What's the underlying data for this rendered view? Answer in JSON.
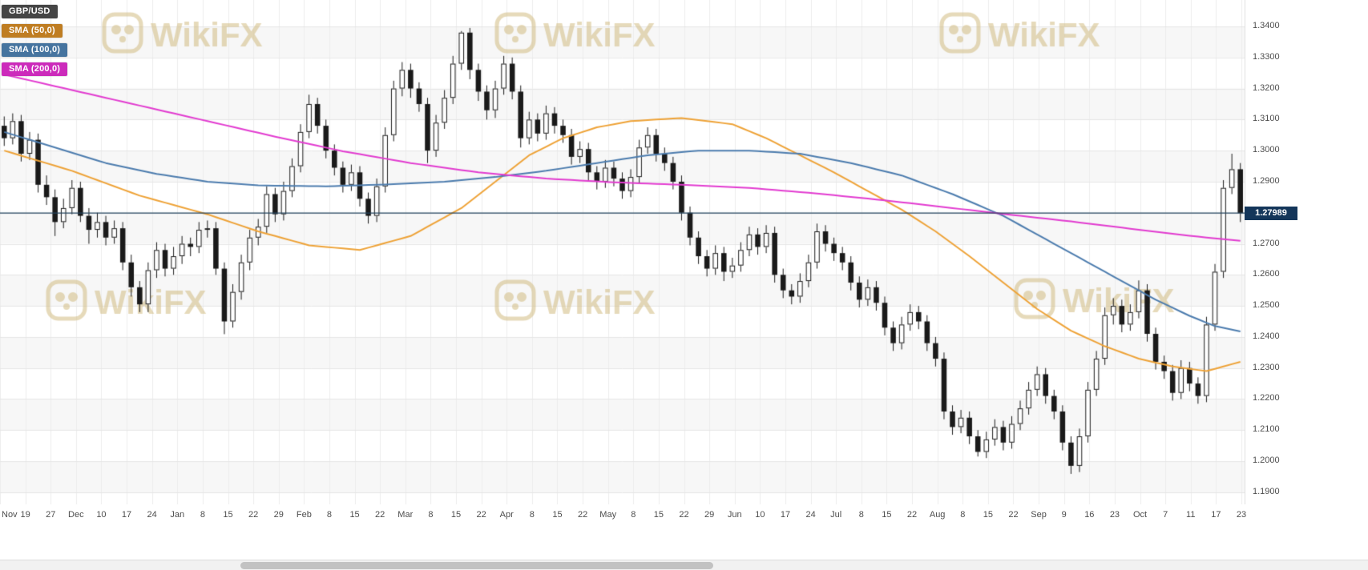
{
  "watermark": {
    "text": "WikiFX"
  },
  "legend": {
    "symbol": "GBP/USD",
    "symbol_bg": "#454545",
    "indicators": [
      {
        "label": "SMA (50,0)",
        "chip_color": "#bf7d22",
        "line_color": "#eea236"
      },
      {
        "label": "SMA (100,0)",
        "chip_color": "#46749f",
        "line_color": "#4c7cae"
      },
      {
        "label": "SMA (200,0)",
        "chip_color": "#cc2bbb",
        "line_color": "#e23bd0"
      }
    ]
  },
  "price_axis": {
    "ticks": [
      "1.3400",
      "1.3300",
      "1.3200",
      "1.3100",
      "1.3000",
      "1.2900",
      "1.2800",
      "1.2700",
      "1.2600",
      "1.2500",
      "1.2400",
      "1.2300",
      "1.2200",
      "1.2100",
      "1.2000",
      "1.1900"
    ],
    "current_price_label": "1.27989",
    "badge_bg": "#14365a"
  },
  "time_axis": {
    "labels": [
      "Nov",
      "19",
      "27",
      "Dec",
      "10",
      "17",
      "24",
      "Jan",
      "8",
      "15",
      "22",
      "29",
      "Feb",
      "8",
      "15",
      "22",
      "Mar",
      "8",
      "15",
      "22",
      "Apr",
      "8",
      "15",
      "22",
      "May",
      "8",
      "15",
      "22",
      "29",
      "Jun",
      "10",
      "17",
      "24",
      "Jul",
      "8",
      "15",
      "22",
      "Aug",
      "8",
      "15",
      "22",
      "Sep",
      "9",
      "16",
      "23",
      "Oct",
      "7",
      "11",
      "17",
      "23"
    ]
  },
  "chart_data": {
    "type": "candlestick",
    "symbol": "GBP/USD",
    "y_range": [
      1.1861,
      1.3485
    ],
    "grid": true,
    "current_price": 1.27989,
    "current_price_color": "#23445f",
    "candle_up_color": "#ffffff",
    "candle_down_color": "#1a1a1a",
    "candle_outline": "#1a1a1a",
    "band_color": "#f7f7f7",
    "hgrid_color": "#e6e6e6",
    "vgrid_color": "#ededed",
    "watermark_color": "rgba(209,188,130,0.55)",
    "candles": [
      [
        1.308,
        1.311,
        1.3015,
        1.304
      ],
      [
        1.304,
        1.312,
        1.302,
        1.3095
      ],
      [
        1.3095,
        1.3115,
        1.2965,
        1.299
      ],
      [
        1.299,
        1.306,
        1.297,
        1.3035
      ],
      [
        1.3035,
        1.3055,
        1.2865,
        1.289
      ],
      [
        1.289,
        1.292,
        1.2825,
        1.285
      ],
      [
        1.285,
        1.2875,
        1.2725,
        1.277
      ],
      [
        1.277,
        1.2845,
        1.275,
        1.2815
      ],
      [
        1.2815,
        1.2905,
        1.2795,
        1.288
      ],
      [
        1.288,
        1.29,
        1.277,
        1.279
      ],
      [
        1.279,
        1.2815,
        1.27,
        1.2745
      ],
      [
        1.2745,
        1.28,
        1.272,
        1.277
      ],
      [
        1.277,
        1.279,
        1.2695,
        1.272
      ],
      [
        1.272,
        1.2775,
        1.27,
        1.275
      ],
      [
        1.275,
        1.277,
        1.2615,
        1.264
      ],
      [
        1.264,
        1.2665,
        1.253,
        1.256
      ],
      [
        1.256,
        1.258,
        1.248,
        1.2505
      ],
      [
        1.2505,
        1.264,
        1.248,
        1.2615
      ],
      [
        1.2615,
        1.2705,
        1.259,
        1.268
      ],
      [
        1.268,
        1.27,
        1.2595,
        1.262
      ],
      [
        1.262,
        1.269,
        1.26,
        1.266
      ],
      [
        1.266,
        1.2725,
        1.2635,
        1.27
      ],
      [
        1.27,
        1.272,
        1.266,
        1.269
      ],
      [
        1.269,
        1.277,
        1.267,
        1.2745
      ],
      [
        1.2745,
        1.2775,
        1.272,
        1.275
      ],
      [
        1.275,
        1.277,
        1.26,
        1.262
      ],
      [
        1.262,
        1.264,
        1.2409,
        1.245
      ],
      [
        1.245,
        1.257,
        1.243,
        1.2545
      ],
      [
        1.2545,
        1.2665,
        1.252,
        1.264
      ],
      [
        1.264,
        1.2745,
        1.2615,
        1.272
      ],
      [
        1.272,
        1.278,
        1.2695,
        1.2755
      ],
      [
        1.2755,
        1.2885,
        1.2735,
        1.286
      ],
      [
        1.286,
        1.288,
        1.277,
        1.2795
      ],
      [
        1.2795,
        1.29,
        1.2775,
        1.287
      ],
      [
        1.287,
        1.2975,
        1.285,
        1.295
      ],
      [
        1.295,
        1.3085,
        1.293,
        1.306
      ],
      [
        1.306,
        1.318,
        1.304,
        1.315
      ],
      [
        1.315,
        1.317,
        1.3055,
        1.308
      ],
      [
        1.308,
        1.31,
        1.2975,
        1.3
      ],
      [
        1.3,
        1.302,
        1.292,
        1.2945
      ],
      [
        1.2945,
        1.2965,
        1.2865,
        1.289
      ],
      [
        1.289,
        1.2955,
        1.287,
        1.293
      ],
      [
        1.293,
        1.295,
        1.282,
        1.2845
      ],
      [
        1.2845,
        1.2865,
        1.2765,
        1.279
      ],
      [
        1.279,
        1.291,
        1.277,
        1.2885
      ],
      [
        1.2885,
        1.3075,
        1.2865,
        1.305
      ],
      [
        1.305,
        1.3225,
        1.303,
        1.32
      ],
      [
        1.32,
        1.3285,
        1.3175,
        1.326
      ],
      [
        1.326,
        1.328,
        1.317,
        1.32
      ],
      [
        1.32,
        1.322,
        1.3125,
        1.315
      ],
      [
        1.315,
        1.317,
        1.296,
        1.3
      ],
      [
        1.3,
        1.3115,
        1.298,
        1.309
      ],
      [
        1.309,
        1.3195,
        1.307,
        1.317
      ],
      [
        1.317,
        1.3305,
        1.315,
        1.328
      ],
      [
        1.328,
        1.3385,
        1.326,
        1.338
      ],
      [
        1.338,
        1.3395,
        1.323,
        1.326
      ],
      [
        1.326,
        1.328,
        1.316,
        1.319
      ],
      [
        1.319,
        1.321,
        1.31,
        1.313
      ],
      [
        1.313,
        1.3225,
        1.3105,
        1.32
      ],
      [
        1.32,
        1.3305,
        1.318,
        1.328
      ],
      [
        1.328,
        1.33,
        1.3165,
        1.319
      ],
      [
        1.319,
        1.321,
        1.301,
        1.304
      ],
      [
        1.304,
        1.3125,
        1.302,
        1.31
      ],
      [
        1.31,
        1.312,
        1.303,
        1.3055
      ],
      [
        1.3055,
        1.3145,
        1.3035,
        1.312
      ],
      [
        1.312,
        1.314,
        1.3055,
        1.308
      ],
      [
        1.308,
        1.31,
        1.3025,
        1.305
      ],
      [
        1.305,
        1.307,
        1.2955,
        1.298
      ],
      [
        1.298,
        1.303,
        1.296,
        1.3005
      ],
      [
        1.3005,
        1.3025,
        1.2905,
        1.293
      ],
      [
        1.293,
        1.295,
        1.2875,
        1.29
      ],
      [
        1.29,
        1.297,
        1.288,
        1.2945
      ],
      [
        1.2945,
        1.2965,
        1.2885,
        1.291
      ],
      [
        1.291,
        1.293,
        1.2845,
        1.287
      ],
      [
        1.287,
        1.294,
        1.285,
        1.2915
      ],
      [
        1.2915,
        1.3035,
        1.2895,
        1.301
      ],
      [
        1.301,
        1.3075,
        1.299,
        1.305
      ],
      [
        1.305,
        1.307,
        1.2965,
        1.299
      ],
      [
        1.299,
        1.301,
        1.2935,
        1.296
      ],
      [
        1.296,
        1.298,
        1.2875,
        1.29
      ],
      [
        1.29,
        1.292,
        1.2775,
        1.28
      ],
      [
        1.28,
        1.282,
        1.2695,
        1.272
      ],
      [
        1.272,
        1.274,
        1.2635,
        1.266
      ],
      [
        1.266,
        1.268,
        1.2595,
        1.262
      ],
      [
        1.262,
        1.2695,
        1.26,
        1.267
      ],
      [
        1.267,
        1.269,
        1.258,
        1.261
      ],
      [
        1.261,
        1.2655,
        1.259,
        1.263
      ],
      [
        1.263,
        1.2705,
        1.261,
        1.268
      ],
      [
        1.268,
        1.2755,
        1.266,
        1.273
      ],
      [
        1.273,
        1.275,
        1.2665,
        1.269
      ],
      [
        1.269,
        1.276,
        1.267,
        1.2735
      ],
      [
        1.2735,
        1.2755,
        1.2575,
        1.26
      ],
      [
        1.26,
        1.262,
        1.2525,
        1.255
      ],
      [
        1.255,
        1.257,
        1.2505,
        1.253
      ],
      [
        1.253,
        1.2605,
        1.251,
        1.258
      ],
      [
        1.258,
        1.2665,
        1.256,
        1.264
      ],
      [
        1.264,
        1.2765,
        1.262,
        1.274
      ],
      [
        1.274,
        1.276,
        1.2675,
        1.27
      ],
      [
        1.27,
        1.272,
        1.2645,
        1.267
      ],
      [
        1.267,
        1.269,
        1.2615,
        1.264
      ],
      [
        1.264,
        1.266,
        1.255,
        1.2575
      ],
      [
        1.2575,
        1.2595,
        1.2495,
        1.252
      ],
      [
        1.252,
        1.2585,
        1.25,
        1.256
      ],
      [
        1.256,
        1.258,
        1.2485,
        1.251
      ],
      [
        1.251,
        1.253,
        1.2405,
        1.243
      ],
      [
        1.243,
        1.245,
        1.2355,
        1.238
      ],
      [
        1.238,
        1.2465,
        1.236,
        1.244
      ],
      [
        1.244,
        1.2505,
        1.242,
        1.248
      ],
      [
        1.248,
        1.25,
        1.2425,
        1.245
      ],
      [
        1.245,
        1.247,
        1.2355,
        1.238
      ],
      [
        1.238,
        1.24,
        1.2305,
        1.233
      ],
      [
        1.233,
        1.235,
        1.2135,
        1.216
      ],
      [
        1.216,
        1.218,
        1.2085,
        1.211
      ],
      [
        1.211,
        1.2165,
        1.209,
        1.214
      ],
      [
        1.214,
        1.216,
        1.2055,
        1.208
      ],
      [
        1.208,
        1.21,
        1.2015,
        1.203
      ],
      [
        1.203,
        1.2095,
        1.201,
        1.207
      ],
      [
        1.207,
        1.2135,
        1.205,
        1.211
      ],
      [
        1.211,
        1.213,
        1.2035,
        1.206
      ],
      [
        1.206,
        1.2145,
        1.204,
        1.212
      ],
      [
        1.212,
        1.2195,
        1.21,
        1.217
      ],
      [
        1.217,
        1.2255,
        1.215,
        1.223
      ],
      [
        1.223,
        1.2305,
        1.221,
        1.228
      ],
      [
        1.228,
        1.23,
        1.2185,
        1.221
      ],
      [
        1.221,
        1.223,
        1.2135,
        1.216
      ],
      [
        1.216,
        1.218,
        1.2035,
        1.206
      ],
      [
        1.206,
        1.208,
        1.1959,
        1.1985
      ],
      [
        1.1985,
        1.2105,
        1.1965,
        1.208
      ],
      [
        1.208,
        1.2255,
        1.206,
        1.223
      ],
      [
        1.223,
        1.2355,
        1.221,
        1.233
      ],
      [
        1.233,
        1.2495,
        1.231,
        1.247
      ],
      [
        1.247,
        1.2525,
        1.244,
        1.25
      ],
      [
        1.25,
        1.252,
        1.2415,
        1.244
      ],
      [
        1.244,
        1.2505,
        1.242,
        1.248
      ],
      [
        1.248,
        1.2582,
        1.246,
        1.255
      ],
      [
        1.255,
        1.257,
        1.2385,
        1.241
      ],
      [
        1.241,
        1.243,
        1.2295,
        1.232
      ],
      [
        1.232,
        1.234,
        1.2265,
        1.229
      ],
      [
        1.229,
        1.231,
        1.2195,
        1.222
      ],
      [
        1.222,
        1.2325,
        1.22,
        1.23
      ],
      [
        1.23,
        1.232,
        1.2225,
        1.225
      ],
      [
        1.225,
        1.227,
        1.2185,
        1.221
      ],
      [
        1.221,
        1.2465,
        1.219,
        1.244
      ],
      [
        1.244,
        1.2635,
        1.242,
        1.261
      ],
      [
        1.261,
        1.2905,
        1.259,
        1.288
      ],
      [
        1.288,
        1.299,
        1.286,
        1.294
      ],
      [
        1.294,
        1.296,
        1.277,
        1.2799
      ]
    ],
    "sma_series": [
      {
        "name": "SMA 50",
        "color": "#eea236",
        "anchors": [
          [
            0,
            1.3
          ],
          [
            8,
            1.2935
          ],
          [
            16,
            1.2855
          ],
          [
            24,
            1.2795
          ],
          [
            30,
            1.274
          ],
          [
            36,
            1.2695
          ],
          [
            42,
            1.268
          ],
          [
            48,
            1.2725
          ],
          [
            54,
            1.2815
          ],
          [
            58,
            1.29
          ],
          [
            62,
            1.2985
          ],
          [
            66,
            1.304
          ],
          [
            70,
            1.3075
          ],
          [
            74,
            1.3095
          ],
          [
            80,
            1.3105
          ],
          [
            86,
            1.3085
          ],
          [
            90,
            1.304
          ],
          [
            94,
            1.2985
          ],
          [
            98,
            1.293
          ],
          [
            102,
            1.287
          ],
          [
            106,
            1.281
          ],
          [
            110,
            1.274
          ],
          [
            114,
            1.266
          ],
          [
            118,
            1.2575
          ],
          [
            122,
            1.249
          ],
          [
            126,
            1.242
          ],
          [
            130,
            1.237
          ],
          [
            134,
            1.233
          ],
          [
            138,
            1.2305
          ],
          [
            142,
            1.229
          ],
          [
            146,
            1.232
          ]
        ]
      },
      {
        "name": "SMA 100",
        "color": "#4c7cae",
        "anchors": [
          [
            0,
            1.306
          ],
          [
            6,
            1.301
          ],
          [
            12,
            1.296
          ],
          [
            18,
            1.2925
          ],
          [
            24,
            1.29
          ],
          [
            30,
            1.2888
          ],
          [
            38,
            1.2885
          ],
          [
            46,
            1.2892
          ],
          [
            52,
            1.29
          ],
          [
            58,
            1.2915
          ],
          [
            64,
            1.2935
          ],
          [
            70,
            1.296
          ],
          [
            76,
            1.2985
          ],
          [
            82,
            1.3
          ],
          [
            88,
            1.3
          ],
          [
            94,
            1.299
          ],
          [
            100,
            1.296
          ],
          [
            106,
            1.292
          ],
          [
            112,
            1.286
          ],
          [
            118,
            1.279
          ],
          [
            124,
            1.27
          ],
          [
            130,
            1.261
          ],
          [
            136,
            1.252
          ],
          [
            140,
            1.2468
          ],
          [
            143,
            1.2435
          ],
          [
            146,
            1.2418
          ]
        ]
      },
      {
        "name": "SMA 200",
        "color": "#e23bd0",
        "anchors": [
          [
            0,
            1.3245
          ],
          [
            8,
            1.3195
          ],
          [
            16,
            1.3145
          ],
          [
            24,
            1.3095
          ],
          [
            32,
            1.3045
          ],
          [
            40,
            1.2998
          ],
          [
            48,
            1.296
          ],
          [
            56,
            1.293
          ],
          [
            64,
            1.291
          ],
          [
            72,
            1.2898
          ],
          [
            80,
            1.289
          ],
          [
            88,
            1.288
          ],
          [
            96,
            1.2862
          ],
          [
            104,
            1.284
          ],
          [
            112,
            1.2815
          ],
          [
            120,
            1.279
          ],
          [
            126,
            1.2772
          ],
          [
            132,
            1.2752
          ],
          [
            138,
            1.2732
          ],
          [
            142,
            1.272
          ],
          [
            146,
            1.271
          ]
        ]
      }
    ]
  }
}
